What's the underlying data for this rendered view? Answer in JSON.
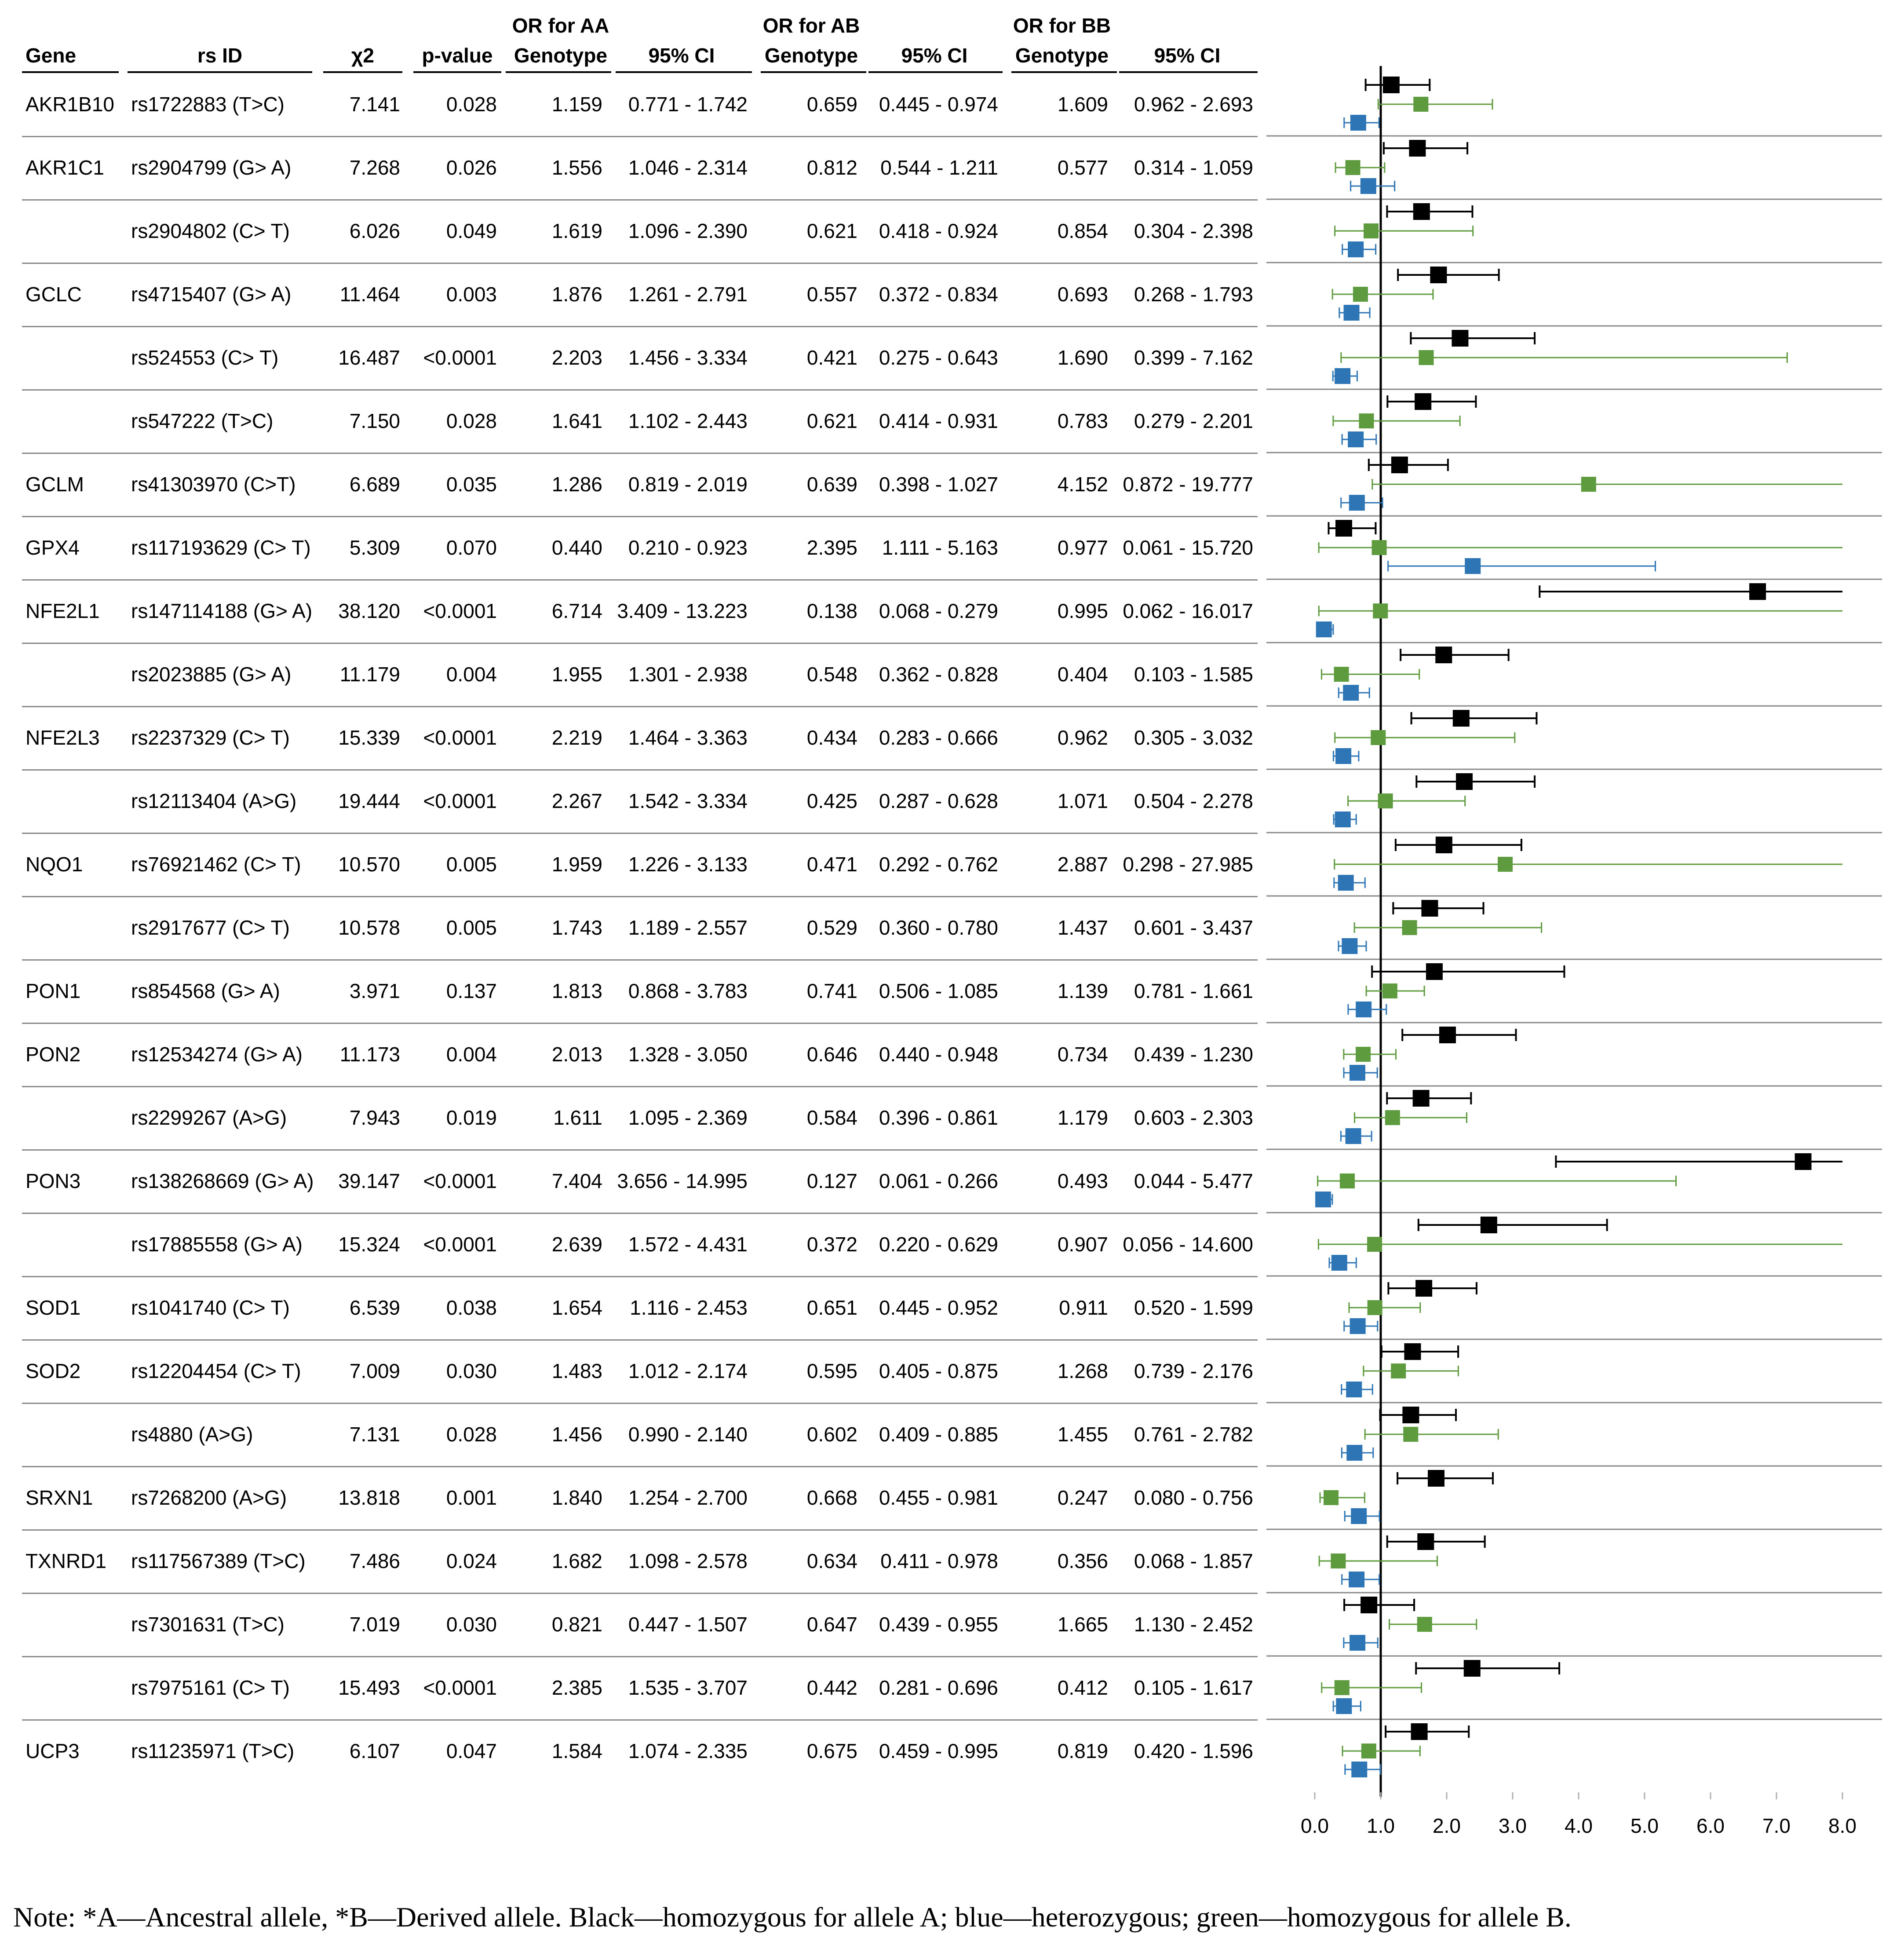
{
  "header": {
    "gene": "Gene",
    "rsid": "rs ID",
    "chi2": "χ2",
    "pvalue": "p-value",
    "or_aa": [
      "OR for AA",
      "Genotype"
    ],
    "ci_aa": "95% CI",
    "or_ab": [
      "OR for AB",
      "Genotype"
    ],
    "ci_ab": "95% CI",
    "or_bb": [
      "OR for BB",
      "Genotype"
    ],
    "ci_bb": "95% CI"
  },
  "rows": [
    {
      "gene": "AKR1B10",
      "rsid": "rs1722883 (T>C)",
      "chi2": "7.141",
      "p": "0.028",
      "or_aa": "1.159",
      "ci_aa": "0.771 - 1.742",
      "or_ab": "0.659",
      "ci_ab": "0.445 - 0.974",
      "or_bb": "1.609",
      "ci_bb": "0.962 - 2.693"
    },
    {
      "gene": "AKR1C1",
      "rsid": "rs2904799 (G> A)",
      "chi2": "7.268",
      "p": "0.026",
      "or_aa": "1.556",
      "ci_aa": "1.046 - 2.314",
      "or_ab": "0.812",
      "ci_ab": "0.544 - 1.211",
      "or_bb": "0.577",
      "ci_bb": "0.314 - 1.059"
    },
    {
      "gene": "",
      "rsid": "rs2904802 (C> T)",
      "chi2": "6.026",
      "p": "0.049",
      "or_aa": "1.619",
      "ci_aa": "1.096 - 2.390",
      "or_ab": "0.621",
      "ci_ab": "0.418 - 0.924",
      "or_bb": "0.854",
      "ci_bb": "0.304 - 2.398"
    },
    {
      "gene": "GCLC",
      "rsid": "rs4715407 (G> A)",
      "chi2": "11.464",
      "p": "0.003",
      "or_aa": "1.876",
      "ci_aa": "1.261 - 2.791",
      "or_ab": "0.557",
      "ci_ab": "0.372 - 0.834",
      "or_bb": "0.693",
      "ci_bb": "0.268 - 1.793"
    },
    {
      "gene": "",
      "rsid": "rs524553 (C> T)",
      "chi2": "16.487",
      "p": "<0.0001",
      "or_aa": "2.203",
      "ci_aa": "1.456 - 3.334",
      "or_ab": "0.421",
      "ci_ab": "0.275 - 0.643",
      "or_bb": "1.690",
      "ci_bb": "0.399 - 7.162"
    },
    {
      "gene": "",
      "rsid": "rs547222 (T>C)",
      "chi2": "7.150",
      "p": "0.028",
      "or_aa": "1.641",
      "ci_aa": "1.102 - 2.443",
      "or_ab": "0.621",
      "ci_ab": "0.414 - 0.931",
      "or_bb": "0.783",
      "ci_bb": "0.279 - 2.201"
    },
    {
      "gene": "GCLM",
      "rsid": "rs41303970 (C>T)",
      "chi2": "6.689",
      "p": "0.035",
      "or_aa": "1.286",
      "ci_aa": "0.819 - 2.019",
      "or_ab": "0.639",
      "ci_ab": "0.398 - 1.027",
      "or_bb": "4.152",
      "ci_bb": "0.872 - 19.777"
    },
    {
      "gene": "GPX4",
      "rsid": "rs117193629 (C> T)",
      "chi2": "5.309",
      "p": "0.070",
      "or_aa": "0.440",
      "ci_aa": "0.210 - 0.923",
      "or_ab": "2.395",
      "ci_ab": "1.111 - 5.163",
      "or_bb": "0.977",
      "ci_bb": "0.061 - 15.720"
    },
    {
      "gene": "NFE2L1",
      "rsid": "rs147114188 (G> A)",
      "chi2": "38.120",
      "p": "<0.0001",
      "or_aa": "6.714",
      "ci_aa": "3.409 - 13.223",
      "or_ab": "0.138",
      "ci_ab": "0.068 - 0.279",
      "or_bb": "0.995",
      "ci_bb": "0.062 - 16.017"
    },
    {
      "gene": "",
      "rsid": "rs2023885 (G> A)",
      "chi2": "11.179",
      "p": "0.004",
      "or_aa": "1.955",
      "ci_aa": "1.301 - 2.938",
      "or_ab": "0.548",
      "ci_ab": "0.362 - 0.828",
      "or_bb": "0.404",
      "ci_bb": "0.103 - 1.585"
    },
    {
      "gene": "NFE2L3",
      "rsid": "rs2237329 (C> T)",
      "chi2": "15.339",
      "p": "<0.0001",
      "or_aa": "2.219",
      "ci_aa": "1.464 - 3.363",
      "or_ab": "0.434",
      "ci_ab": "0.283 - 0.666",
      "or_bb": "0.962",
      "ci_bb": "0.305 - 3.032"
    },
    {
      "gene": "",
      "rsid": "rs12113404 (A>G)",
      "chi2": "19.444",
      "p": "<0.0001",
      "or_aa": "2.267",
      "ci_aa": "1.542 - 3.334",
      "or_ab": "0.425",
      "ci_ab": "0.287 - 0.628",
      "or_bb": "1.071",
      "ci_bb": "0.504 - 2.278"
    },
    {
      "gene": "NQO1",
      "rsid": "rs76921462 (C> T)",
      "chi2": "10.570",
      "p": "0.005",
      "or_aa": "1.959",
      "ci_aa": "1.226 - 3.133",
      "or_ab": "0.471",
      "ci_ab": "0.292 - 0.762",
      "or_bb": "2.887",
      "ci_bb": "0.298 - 27.985"
    },
    {
      "gene": "",
      "rsid": "rs2917677 (C> T)",
      "chi2": "10.578",
      "p": "0.005",
      "or_aa": "1.743",
      "ci_aa": "1.189 - 2.557",
      "or_ab": "0.529",
      "ci_ab": "0.360 - 0.780",
      "or_bb": "1.437",
      "ci_bb": "0.601 - 3.437"
    },
    {
      "gene": "PON1",
      "rsid": "rs854568 (G> A)",
      "chi2": "3.971",
      "p": "0.137",
      "or_aa": "1.813",
      "ci_aa": "0.868 - 3.783",
      "or_ab": "0.741",
      "ci_ab": "0.506 - 1.085",
      "or_bb": "1.139",
      "ci_bb": "0.781 - 1.661"
    },
    {
      "gene": "PON2",
      "rsid": "rs12534274 (G> A)",
      "chi2": "11.173",
      "p": "0.004",
      "or_aa": "2.013",
      "ci_aa": "1.328 - 3.050",
      "or_ab": "0.646",
      "ci_ab": "0.440 - 0.948",
      "or_bb": "0.734",
      "ci_bb": "0.439 - 1.230"
    },
    {
      "gene": "",
      "rsid": "rs2299267 (A>G)",
      "chi2": "7.943",
      "p": "0.019",
      "or_aa": "1.611",
      "ci_aa": "1.095 - 2.369",
      "or_ab": "0.584",
      "ci_ab": "0.396 - 0.861",
      "or_bb": "1.179",
      "ci_bb": "0.603 - 2.303"
    },
    {
      "gene": "PON3",
      "rsid": "rs138268669 (G> A)",
      "chi2": "39.147",
      "p": "<0.0001",
      "or_aa": "7.404",
      "ci_aa": "3.656 - 14.995",
      "or_ab": "0.127",
      "ci_ab": "0.061 - 0.266",
      "or_bb": "0.493",
      "ci_bb": "0.044 - 5.477"
    },
    {
      "gene": "",
      "rsid": "rs17885558 (G> A)",
      "chi2": "15.324",
      "p": "<0.0001",
      "or_aa": "2.639",
      "ci_aa": "1.572 - 4.431",
      "or_ab": "0.372",
      "ci_ab": "0.220 - 0.629",
      "or_bb": "0.907",
      "ci_bb": "0.056 - 14.600"
    },
    {
      "gene": "SOD1",
      "rsid": "rs1041740 (C> T)",
      "chi2": "6.539",
      "p": "0.038",
      "or_aa": "1.654",
      "ci_aa": "1.116 - 2.453",
      "or_ab": "0.651",
      "ci_ab": "0.445 - 0.952",
      "or_bb": "0.911",
      "ci_bb": "0.520 - 1.599"
    },
    {
      "gene": "SOD2",
      "rsid": "rs12204454 (C> T)",
      "chi2": "7.009",
      "p": "0.030",
      "or_aa": "1.483",
      "ci_aa": "1.012 - 2.174",
      "or_ab": "0.595",
      "ci_ab": "0.405 - 0.875",
      "or_bb": "1.268",
      "ci_bb": "0.739 - 2.176"
    },
    {
      "gene": "",
      "rsid": "rs4880 (A>G)",
      "chi2": "7.131",
      "p": "0.028",
      "or_aa": "1.456",
      "ci_aa": "0.990 - 2.140",
      "or_ab": "0.602",
      "ci_ab": "0.409 - 0.885",
      "or_bb": "1.455",
      "ci_bb": "0.761 - 2.782"
    },
    {
      "gene": "SRXN1",
      "rsid": "rs7268200 (A>G)",
      "chi2": "13.818",
      "p": "0.001",
      "or_aa": "1.840",
      "ci_aa": "1.254 - 2.700",
      "or_ab": "0.668",
      "ci_ab": "0.455 - 0.981",
      "or_bb": "0.247",
      "ci_bb": "0.080 - 0.756"
    },
    {
      "gene": "TXNRD1",
      "rsid": "rs117567389 (T>C)",
      "chi2": "7.486",
      "p": "0.024",
      "or_aa": "1.682",
      "ci_aa": "1.098 - 2.578",
      "or_ab": "0.634",
      "ci_ab": "0.411 - 0.978",
      "or_bb": "0.356",
      "ci_bb": "0.068 - 1.857"
    },
    {
      "gene": "",
      "rsid": "rs7301631 (T>C)",
      "chi2": "7.019",
      "p": "0.030",
      "or_aa": "0.821",
      "ci_aa": "0.447 - 1.507",
      "or_ab": "0.647",
      "ci_ab": "0.439 - 0.955",
      "or_bb": "1.665",
      "ci_bb": "1.130 - 2.452"
    },
    {
      "gene": "",
      "rsid": "rs7975161 (C> T)",
      "chi2": "15.493",
      "p": "<0.0001",
      "or_aa": "2.385",
      "ci_aa": "1.535 - 3.707",
      "or_ab": "0.442",
      "ci_ab": "0.281 - 0.696",
      "or_bb": "0.412",
      "ci_bb": "0.105 - 1.617"
    },
    {
      "gene": "UCP3",
      "rsid": "rs11235971 (T>C)",
      "chi2": "6.107",
      "p": "0.047",
      "or_aa": "1.584",
      "ci_aa": "1.074 - 2.335",
      "or_ab": "0.675",
      "ci_ab": "0.459 - 0.995",
      "or_bb": "0.819",
      "ci_bb": "0.420 - 1.596"
    }
  ],
  "chart_data": {
    "type": "forest",
    "x_range": [
      0,
      8
    ],
    "x_ticks": [
      "0.0",
      "1.0",
      "2.0",
      "3.0",
      "4.0",
      "5.0",
      "6.0",
      "7.0",
      "8.0"
    ],
    "reference_line": 1.0,
    "truncate_at": 8.0,
    "series_colors": {
      "AA": "#000000",
      "AB": "#2e75b6",
      "BB": "#5e9a3e"
    },
    "source": "rows[].or_aa / ci_aa (black), rows[].or_ab / ci_ab (blue), rows[].or_bb / ci_bb (green)"
  },
  "note": "Note: *A—Ancestral allele, *B—Derived allele. Black—homozygous for allele A; blue—heterozygous; green—homozygous for allele B."
}
